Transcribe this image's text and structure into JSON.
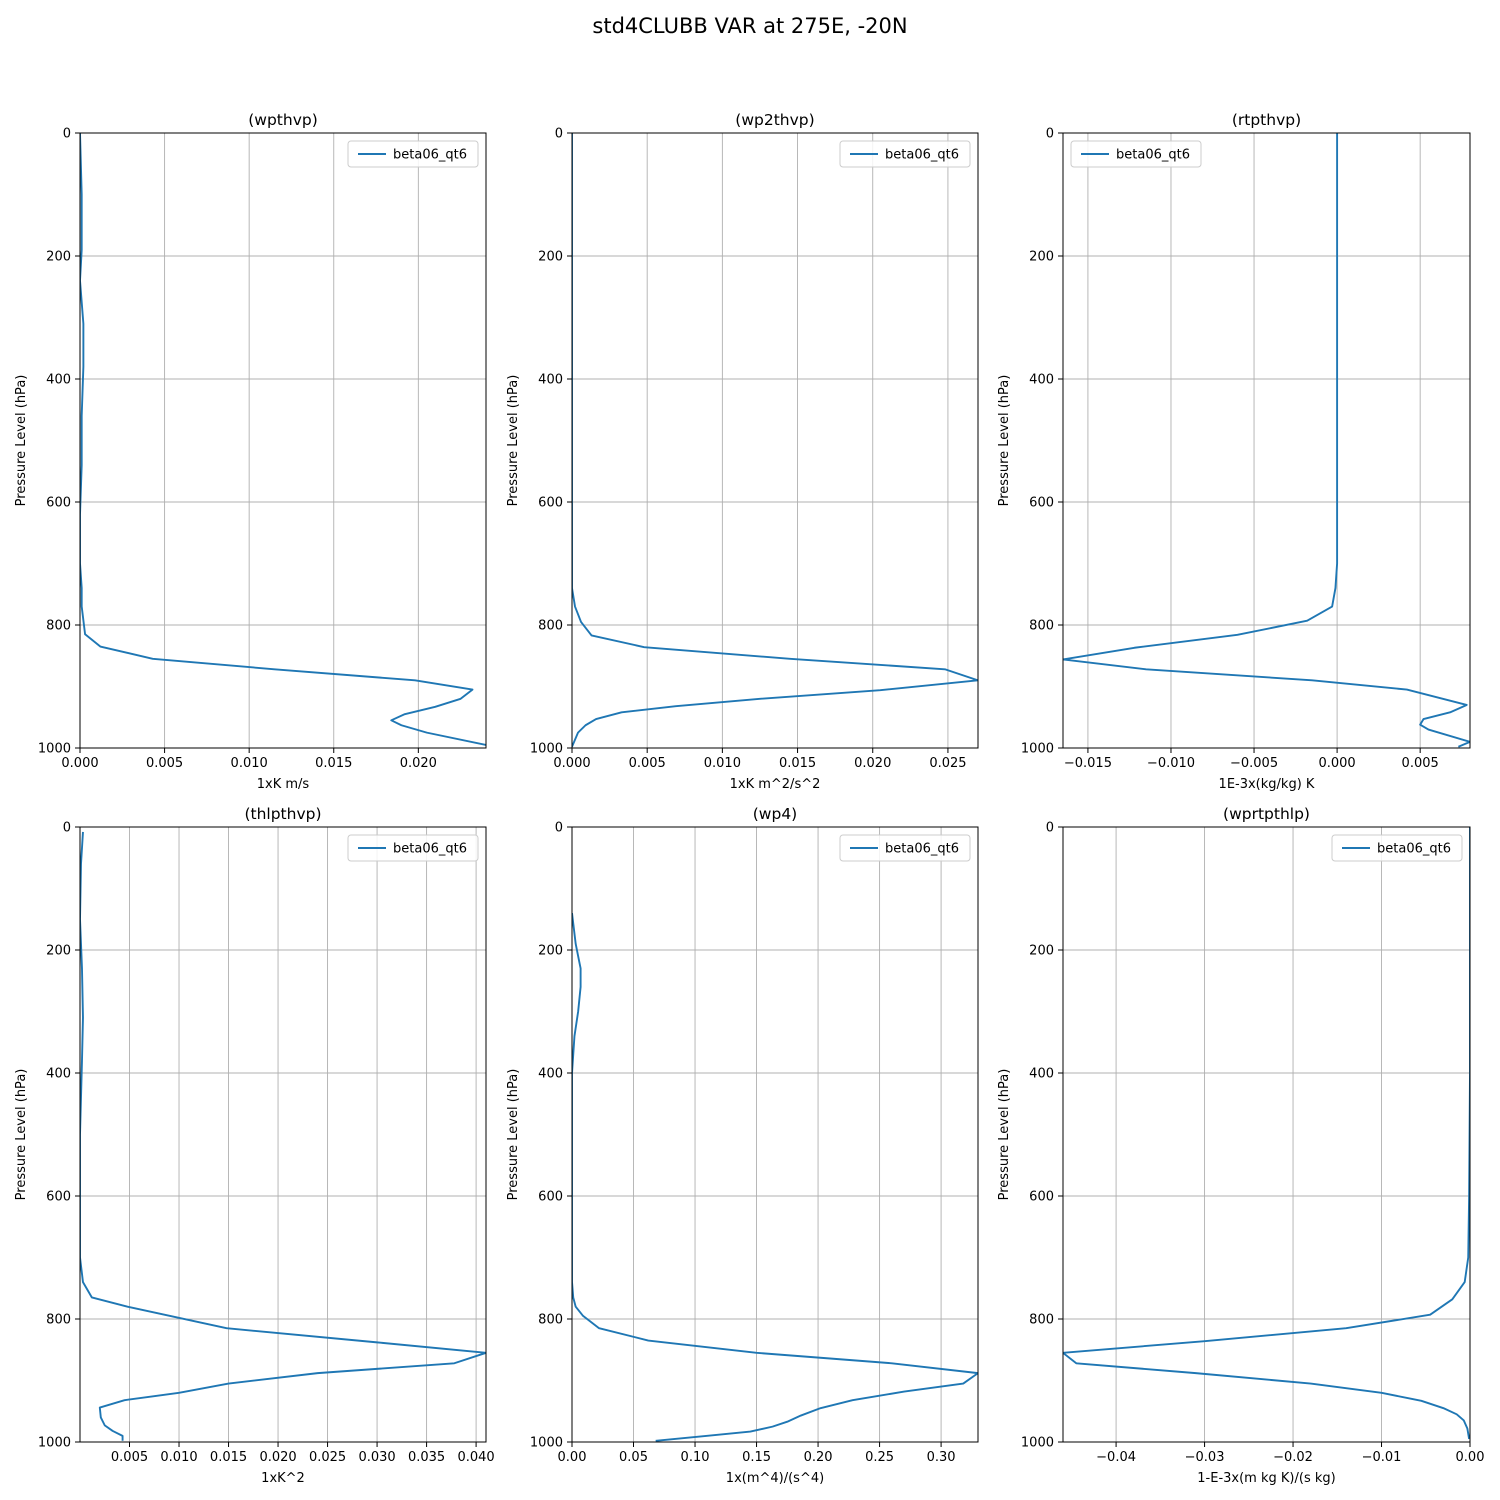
{
  "suptitle": "std4CLUBB VAR at 275E, -20N",
  "colors": {
    "series": "#1f77b4",
    "grid": "#b0b0b0",
    "axes": "#000000"
  },
  "chart_data": [
    {
      "type": "line",
      "title": "(wpthvp)",
      "xlabel": "1xK m/s",
      "ylabel": "Pressure Level (hPa)",
      "xlim": [
        0,
        0.024
      ],
      "ylim": [
        1000,
        0
      ],
      "xticks": [
        0,
        0.005,
        0.01,
        0.015,
        0.02
      ],
      "xtick_labels": [
        "0.000",
        "0.005",
        "0.010",
        "0.015",
        "0.020"
      ],
      "yticks": [
        0,
        200,
        400,
        600,
        800,
        1000
      ],
      "ytick_labels": [
        "0",
        "200",
        "400",
        "600",
        "800",
        "1000"
      ],
      "grid": true,
      "legend": "upper right",
      "series": [
        {
          "name": "beta06_qt6",
          "x": [
            0.0,
            0.0001,
            0.0001,
            0.0,
            0.0002,
            0.0002,
            0.0001,
            0.0001,
            0.0,
            0.0,
            0.0001,
            0.0001,
            0.0003,
            0.0012,
            0.0043,
            0.0115,
            0.0198,
            0.0232,
            0.0225,
            0.021,
            0.0192,
            0.0184,
            0.019,
            0.0205,
            0.024
          ],
          "y": [
            0,
            100,
            190,
            240,
            310,
            380,
            460,
            540,
            620,
            700,
            740,
            770,
            815,
            835,
            855,
            872,
            890,
            905,
            920,
            933,
            945,
            955,
            963,
            975,
            995
          ]
        }
      ]
    },
    {
      "type": "line",
      "title": "(wp2thvp)",
      "xlabel": "1xK m^2/s^2",
      "ylabel": "Pressure Level (hPa)",
      "xlim": [
        0,
        0.027
      ],
      "ylim": [
        1000,
        0
      ],
      "xticks": [
        0,
        0.005,
        0.01,
        0.015,
        0.02,
        0.025
      ],
      "xtick_labels": [
        "0.000",
        "0.005",
        "0.010",
        "0.015",
        "0.020",
        "0.025"
      ],
      "yticks": [
        0,
        200,
        400,
        600,
        800,
        1000
      ],
      "ytick_labels": [
        "0",
        "200",
        "400",
        "600",
        "800",
        "1000"
      ],
      "grid": true,
      "legend": "upper right",
      "series": [
        {
          "name": "beta06_qt6",
          "x": [
            0.0,
            0.0,
            0.0002,
            0.0006,
            0.0013,
            0.0048,
            0.0145,
            0.0248,
            0.027,
            0.0205,
            0.0125,
            0.0069,
            0.0033,
            0.0016,
            0.0009,
            0.0004,
            0.0
          ],
          "y": [
            0,
            740,
            770,
            795,
            817,
            836,
            855,
            872,
            890,
            906,
            920,
            932,
            942,
            953,
            963,
            975,
            998
          ]
        }
      ]
    },
    {
      "type": "line",
      "title": "(rtpthvp)",
      "xlabel": "1E-3x(kg/kg) K",
      "ylabel": "Pressure Level (hPa)",
      "xlim": [
        -0.0165,
        0.008
      ],
      "ylim": [
        1000,
        0
      ],
      "xticks": [
        -0.015,
        -0.01,
        -0.005,
        0.0,
        0.005
      ],
      "xtick_labels": [
        "−0.015",
        "−0.010",
        "−0.005",
        "0.000",
        "0.005"
      ],
      "yticks": [
        0,
        200,
        400,
        600,
        800,
        1000
      ],
      "ytick_labels": [
        "0",
        "200",
        "400",
        "600",
        "800",
        "1000"
      ],
      "grid": true,
      "legend": "upper left",
      "series": [
        {
          "name": "beta06_qt6",
          "x": [
            0.0,
            0.0,
            0.0,
            0.0,
            0.0,
            -0.0001,
            -0.0003,
            -0.0018,
            -0.006,
            -0.0122,
            -0.0165,
            -0.0115,
            -0.0015,
            0.0042,
            0.0078,
            0.0068,
            0.0052,
            0.005,
            0.0055,
            0.008,
            0.0073
          ],
          "y": [
            0,
            200,
            400,
            600,
            700,
            740,
            770,
            793,
            816,
            837,
            856,
            872,
            890,
            905,
            930,
            942,
            953,
            962,
            970,
            990,
            998
          ]
        }
      ]
    },
    {
      "type": "line",
      "title": "(thlpthvp)",
      "xlabel": "1xK^2",
      "ylabel": "Pressure Level (hPa)",
      "xlim": [
        0,
        0.041
      ],
      "ylim": [
        1000,
        0
      ],
      "xticks": [
        0.005,
        0.01,
        0.015,
        0.02,
        0.025,
        0.03,
        0.035,
        0.04
      ],
      "xtick_labels": [
        "0.005",
        "0.010",
        "0.015",
        "0.020",
        "0.025",
        "0.030",
        "0.035",
        "0.040"
      ],
      "yticks": [
        0,
        200,
        400,
        600,
        800,
        1000
      ],
      "ytick_labels": [
        "0",
        "200",
        "400",
        "600",
        "800",
        "1000"
      ],
      "grid": true,
      "legend": "upper right",
      "series": [
        {
          "name": "beta06_qt6",
          "x": [
            0.0003,
            0.0001,
            0.0,
            0.0002,
            0.0003,
            0.0002,
            0.0,
            0.0,
            0.0003,
            0.0012,
            0.0048,
            0.0148,
            0.03,
            0.041,
            0.0378,
            0.024,
            0.015,
            0.01,
            0.0045,
            0.002,
            0.0021,
            0.0025,
            0.0033,
            0.0043,
            0.0043
          ],
          "y": [
            8,
            60,
            150,
            230,
            310,
            380,
            500,
            700,
            740,
            765,
            780,
            815,
            838,
            855,
            872,
            888,
            905,
            920,
            932,
            944,
            960,
            973,
            982,
            990,
            998
          ]
        }
      ]
    },
    {
      "type": "line",
      "title": "(wp4)",
      "xlabel": "1x(m^4)/(s^4)",
      "ylabel": "Pressure Level (hPa)",
      "xlim": [
        0,
        0.33
      ],
      "ylim": [
        1000,
        0
      ],
      "xticks": [
        0,
        0.05,
        0.1,
        0.15,
        0.2,
        0.25,
        0.3
      ],
      "xtick_labels": [
        "0.00",
        "0.05",
        "0.10",
        "0.15",
        "0.20",
        "0.25",
        "0.30"
      ],
      "yticks": [
        0,
        200,
        400,
        600,
        800,
        1000
      ],
      "ytick_labels": [
        "0",
        "200",
        "400",
        "600",
        "800",
        "1000"
      ],
      "grid": true,
      "legend": "upper right",
      "series": [
        {
          "name": "beta06_qt6",
          "x": [
            0.0,
            0.003,
            0.005,
            0.007,
            0.007,
            0.005,
            0.002,
            0.0,
            0.0,
            0.0,
            0.001,
            0.003,
            0.009,
            0.022,
            0.062,
            0.15,
            0.26,
            0.33,
            0.318,
            0.27,
            0.228,
            0.202,
            0.186,
            0.175,
            0.163,
            0.145,
            0.11,
            0.068
          ],
          "y": [
            140,
            190,
            210,
            230,
            260,
            300,
            340,
            400,
            700,
            740,
            765,
            780,
            795,
            815,
            835,
            855,
            872,
            888,
            905,
            918,
            932,
            945,
            957,
            967,
            975,
            983,
            990,
            998
          ]
        }
      ]
    },
    {
      "type": "line",
      "title": "(wprtpthlp)",
      "xlabel": "1-E-3x(m kg K)/(s kg)",
      "ylabel": "Pressure Level (hPa)",
      "xlim": [
        -0.046,
        0.0
      ],
      "ylim": [
        1000,
        0
      ],
      "xticks": [
        -0.04,
        -0.03,
        -0.02,
        -0.01,
        0.0
      ],
      "xtick_labels": [
        "−0.04",
        "−0.03",
        "−0.02",
        "−0.01",
        "0.00"
      ],
      "yticks": [
        0,
        200,
        400,
        600,
        800,
        1000
      ],
      "ytick_labels": [
        "0",
        "200",
        "400",
        "600",
        "800",
        "1000"
      ],
      "grid": true,
      "legend": "upper right",
      "series": [
        {
          "name": "beta06_qt6",
          "x": [
            0.0,
            0.0,
            0.0,
            -0.0001,
            -0.0002,
            -0.0006,
            -0.002,
            -0.0045,
            -0.014,
            -0.03,
            -0.046,
            -0.0445,
            -0.031,
            -0.018,
            -0.01,
            -0.0055,
            -0.003,
            -0.0015,
            -0.0007,
            -0.0003,
            -0.0001
          ],
          "y": [
            0,
            200,
            400,
            600,
            700,
            740,
            768,
            793,
            815,
            836,
            855,
            872,
            888,
            905,
            920,
            933,
            945,
            955,
            965,
            978,
            995
          ]
        }
      ]
    }
  ]
}
